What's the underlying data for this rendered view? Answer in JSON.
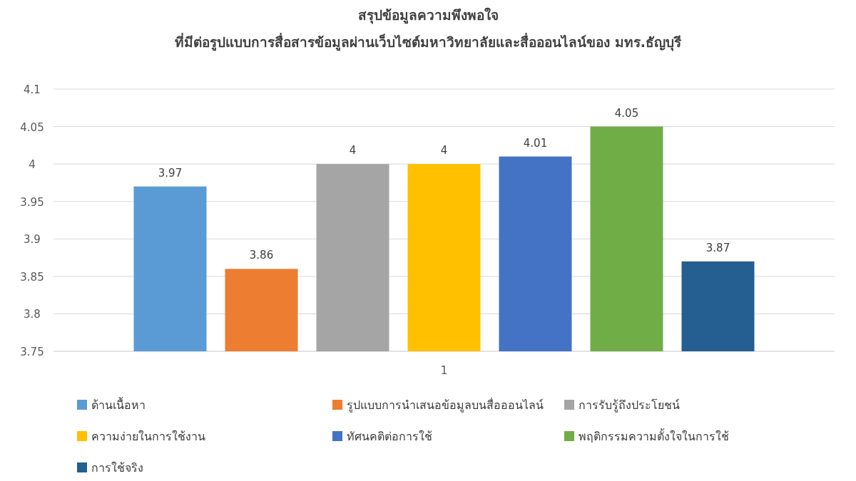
{
  "chart_data": {
    "type": "bar",
    "title": "สรุปข้อมูลความพึงพอใจ",
    "subtitle": "ที่มีต่อรูปแบบการสื่อสารข้อมูลผ่านเว็บไซต์มหาวิทยาลัยและสื่อออนไลน์ของ มทร.ธัญบุรี",
    "categories": [
      "1"
    ],
    "series": [
      {
        "name": "ด้านเนื้อหา",
        "color": "#5b9bd5",
        "values": [
          3.97
        ]
      },
      {
        "name": "รูปแบบการนำเสนอข้อมูลบนสื่อออนไลน์",
        "color": "#ed7d31",
        "values": [
          3.86
        ]
      },
      {
        "name": "การรับรู้ถึงประโยชน์",
        "color": "#a5a5a5",
        "values": [
          4
        ]
      },
      {
        "name": "ความง่ายในการใช้งาน",
        "color": "#ffc000",
        "values": [
          4
        ]
      },
      {
        "name": "ทัศนคติต่อการใช้",
        "color": "#4472c4",
        "values": [
          4.01
        ]
      },
      {
        "name": "พฤติกรรมความตั้งใจในการใช้",
        "color": "#70ad47",
        "values": [
          4.05
        ]
      },
      {
        "name": "การใช้จริง",
        "color": "#255e91",
        "values": [
          3.87
        ]
      }
    ],
    "ylim": [
      3.75,
      4.1
    ],
    "yticks": [
      3.75,
      3.8,
      3.85,
      3.9,
      3.95,
      4,
      4.05,
      4.1
    ],
    "grid": "y",
    "legend": "bottom",
    "data_labels": true
  }
}
